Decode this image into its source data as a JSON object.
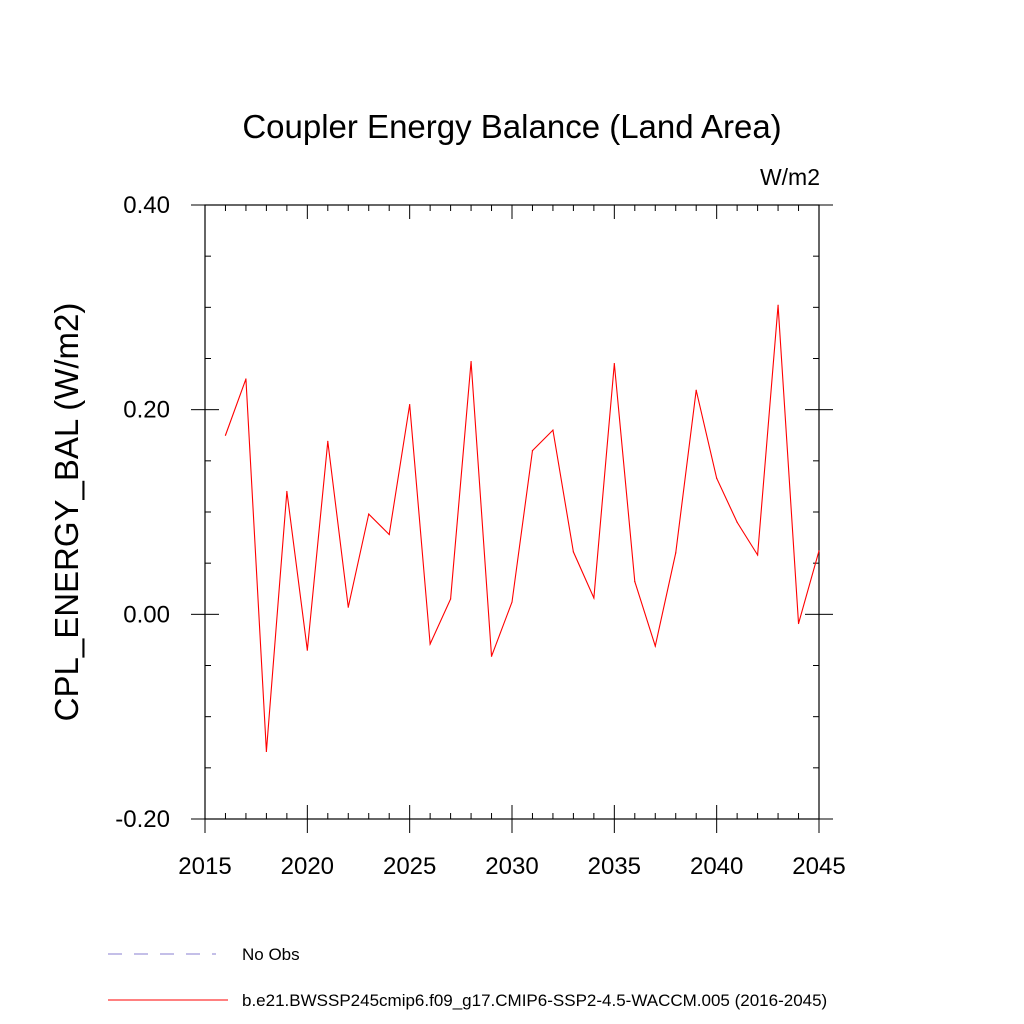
{
  "chart_data": {
    "type": "line",
    "title": "Coupler Energy Balance (Land Area)",
    "units_label": "W/m2",
    "ylabel": "CPL_ENERGY_BAL  (W/m2)",
    "xlabel": "",
    "xlim": [
      2015,
      2045
    ],
    "ylim": [
      -0.2,
      0.4
    ],
    "xticks": [
      2015,
      2020,
      2025,
      2030,
      2035,
      2040,
      2045
    ],
    "xtick_labels": [
      "2015",
      "2020",
      "2025",
      "2030",
      "2035",
      "2040",
      "2045"
    ],
    "yticks": [
      -0.2,
      0.0,
      0.2,
      0.4
    ],
    "ytick_labels": [
      "-0.20",
      "0.00",
      "0.20",
      "0.40"
    ],
    "grid": false,
    "legend_position": "bottom",
    "series": [
      {
        "name": "b.e21.BWSSP245cmip6.f09_g17.CMIP6-SSP2-4.5-WACCM.005 (2016-2045)",
        "color": "#ff0000",
        "style": "solid",
        "x": [
          2016,
          2017,
          2018,
          2019,
          2020,
          2021,
          2022,
          2023,
          2024,
          2025,
          2026,
          2027,
          2028,
          2029,
          2030,
          2031,
          2032,
          2033,
          2034,
          2035,
          2036,
          2037,
          2038,
          2039,
          2040,
          2041,
          2042,
          2043,
          2044,
          2045
        ],
        "y": [
          0.175,
          0.23,
          -0.134,
          0.12,
          -0.035,
          0.169,
          0.007,
          0.098,
          0.078,
          0.205,
          -0.029,
          0.015,
          0.247,
          -0.041,
          0.012,
          0.16,
          0.18,
          0.061,
          0.016,
          0.245,
          0.032,
          -0.031,
          0.06,
          0.219,
          0.133,
          0.09,
          0.058,
          0.302,
          -0.009,
          0.062
        ]
      }
    ],
    "legend": [
      {
        "label": "No Obs",
        "color": "#8a7fd0",
        "style": "dashed"
      },
      {
        "label": "b.e21.BWSSP245cmip6.f09_g17.CMIP6-SSP2-4.5-WACCM.005 (2016-2045)",
        "color": "#ff0000",
        "style": "solid"
      }
    ]
  }
}
